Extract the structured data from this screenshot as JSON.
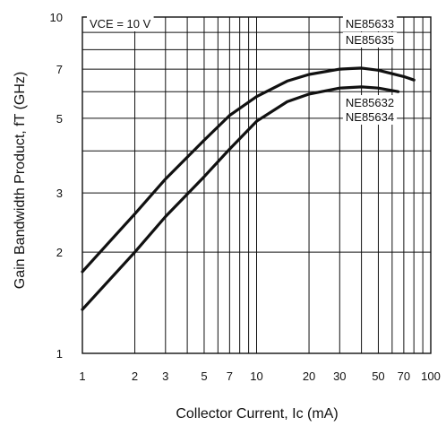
{
  "chart_data": {
    "type": "line",
    "x_scale": "log",
    "y_scale": "log",
    "xlim": [
      1,
      100
    ],
    "ylim": [
      1,
      10
    ],
    "grid": true,
    "xlabel": "Collector Current, Ic (mA)",
    "ylabel": "Gain Bandwidth Product, fT (GHz)",
    "x_ticks": [
      1,
      2,
      3,
      5,
      7,
      10,
      20,
      30,
      50,
      70,
      100
    ],
    "x_tick_labels": [
      "1",
      "2",
      "3",
      "5",
      "7",
      "10",
      "20",
      "30",
      "50",
      "70",
      "100"
    ],
    "y_ticks": [
      1,
      2,
      3,
      5,
      7,
      10
    ],
    "y_tick_labels": [
      "1",
      "2",
      "3",
      "5",
      "7",
      "10"
    ],
    "annotations": [
      {
        "text": "VCE = 10 V"
      }
    ],
    "series": [
      {
        "name": "NE85633 / NE85635",
        "labels": [
          "NE85633",
          "NE85635"
        ],
        "x": [
          1,
          2,
          3,
          5,
          7,
          10,
          15,
          20,
          30,
          40,
          50,
          70,
          80
        ],
        "y": [
          1.75,
          2.6,
          3.3,
          4.3,
          5.1,
          5.8,
          6.45,
          6.75,
          7.0,
          7.05,
          6.95,
          6.65,
          6.5
        ]
      },
      {
        "name": "NE85632 / NE85634",
        "labels": [
          "NE85632",
          "NE85634"
        ],
        "x": [
          1,
          2,
          3,
          5,
          7,
          10,
          15,
          20,
          30,
          40,
          50,
          65
        ],
        "y": [
          1.35,
          2.0,
          2.55,
          3.35,
          4.05,
          4.9,
          5.6,
          5.9,
          6.15,
          6.2,
          6.15,
          6.0
        ]
      }
    ]
  }
}
